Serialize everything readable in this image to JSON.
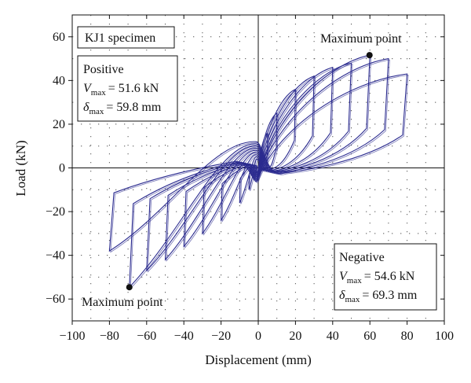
{
  "chart_data": {
    "type": "line",
    "title": "",
    "xlabel": "Displacement (mm)",
    "ylabel": "Load (kN)",
    "xlim": [
      -100,
      100
    ],
    "ylim": [
      -70,
      70
    ],
    "x_ticks": [
      -100,
      -80,
      -60,
      -40,
      -20,
      0,
      20,
      40,
      60,
      80,
      100
    ],
    "y_ticks": [
      -60,
      -40,
      -20,
      0,
      20,
      40,
      60
    ],
    "x_tick_labels": [
      "−100",
      "−80",
      "−60",
      "−40",
      "−20",
      "0",
      "20",
      "40",
      "60",
      "80",
      "100"
    ],
    "y_tick_labels": [
      "−60",
      "−40",
      "−20",
      "0",
      "20",
      "40",
      "60"
    ],
    "grid": "dotted",
    "line_color": "#2b2b8f",
    "specimen_label": "KJ1 specimen",
    "positive_box": {
      "title": "Positive",
      "v_symbol": "V",
      "v_sub": "max",
      "v_value": "= 51.6 kN",
      "d_symbol": "δ",
      "d_sub": "max",
      "d_value": "= 59.8 mm"
    },
    "negative_box": {
      "title": "Negative",
      "v_symbol": "V",
      "v_sub": "max",
      "v_value": "= 54.6 kN",
      "d_symbol": "δ",
      "d_sub": "max",
      "d_value": "= 69.3 mm"
    },
    "annotations": [
      {
        "text": "Maximum point",
        "point": [
          59.8,
          51.6
        ]
      },
      {
        "text": "Maximum point",
        "point": [
          -69.3,
          -54.6
        ]
      }
    ],
    "cycles": [
      {
        "pos_disp": 5,
        "pos_load": 16,
        "neg_disp": -5,
        "neg_load": -10
      },
      {
        "pos_disp": 10,
        "pos_load": 25,
        "neg_disp": -10,
        "neg_load": -16
      },
      {
        "pos_disp": 20,
        "pos_load": 36,
        "neg_disp": -20,
        "neg_load": -24
      },
      {
        "pos_disp": 30,
        "pos_load": 42,
        "neg_disp": -30,
        "neg_load": -30
      },
      {
        "pos_disp": 40,
        "pos_load": 46,
        "neg_disp": -40,
        "neg_load": -36
      },
      {
        "pos_disp": 50,
        "pos_load": 48,
        "neg_disp": -50,
        "neg_load": -42
      },
      {
        "pos_disp": 60,
        "pos_load": 51.6,
        "neg_disp": -60,
        "neg_load": -47
      },
      {
        "pos_disp": 70,
        "pos_load": 50,
        "neg_disp": -69.3,
        "neg_load": -54.6
      },
      {
        "pos_disp": 80,
        "pos_load": 43,
        "neg_disp": -80,
        "neg_load": -38
      }
    ]
  }
}
